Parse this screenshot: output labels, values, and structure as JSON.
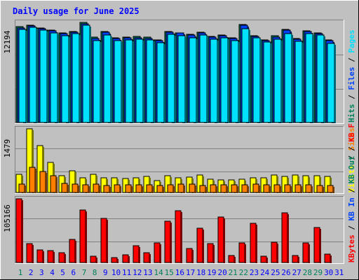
{
  "title": "Daily usage for June 2025",
  "colors": {
    "hits": "#00805c",
    "files": "#0040ff",
    "pages": "#00e0ff",
    "visits": "#ffff00",
    "sites": "#ff8000",
    "kbytes": "#ff0000",
    "title": "#0000ff",
    "weekend_label": "#00805c",
    "weekday_label": "#0000ff",
    "plot_bg": "#c0c0c0"
  },
  "chart_data": [
    {
      "type": "bar",
      "panel": "hits",
      "categories": [
        "1",
        "2",
        "3",
        "4",
        "5",
        "6",
        "7",
        "8",
        "9",
        "10",
        "11",
        "12",
        "13",
        "14",
        "15",
        "16",
        "17",
        "18",
        "19",
        "20",
        "21",
        "22",
        "23",
        "24",
        "25",
        "26",
        "27",
        "28",
        "29",
        "30",
        "31"
      ],
      "ymax_label": "12194",
      "ylim": [
        0,
        12194
      ],
      "legend": [
        "Hits",
        "Files",
        "Pages"
      ],
      "legend_colors": [
        "#00805c",
        "#0040ff",
        "#00e0ff"
      ],
      "series": [
        {
          "name": "Hits",
          "values": [
            11650,
            11860,
            11540,
            11290,
            10930,
            11080,
            12194,
            10380,
            11110,
            10340,
            10390,
            10460,
            10370,
            10020,
            11070,
            10950,
            10760,
            11000,
            10490,
            10660,
            10330,
            11980,
            10590,
            10070,
            10540,
            11330,
            10220,
            11140,
            10950,
            10040,
            0
          ]
        },
        {
          "name": "Files",
          "values": [
            11550,
            11760,
            11440,
            11140,
            10830,
            10980,
            12050,
            10240,
            10990,
            10230,
            10280,
            10360,
            10270,
            9980,
            10980,
            10890,
            10660,
            10880,
            10390,
            10560,
            10230,
            11880,
            10490,
            9970,
            10440,
            11230,
            10120,
            11050,
            10850,
            9940,
            0
          ]
        },
        {
          "name": "Pages",
          "values": [
            11300,
            11600,
            11220,
            10880,
            10560,
            10790,
            11870,
            10000,
            10680,
            9990,
            10050,
            10130,
            10040,
            9720,
            10770,
            10560,
            10300,
            10640,
            10130,
            10350,
            9960,
            11400,
            10290,
            9800,
            10170,
            10800,
            9920,
            10870,
            10650,
            9660,
            0
          ]
        }
      ]
    },
    {
      "type": "bar",
      "panel": "visits",
      "categories": [
        "1",
        "2",
        "3",
        "4",
        "5",
        "6",
        "7",
        "8",
        "9",
        "10",
        "11",
        "12",
        "13",
        "14",
        "15",
        "16",
        "17",
        "18",
        "19",
        "20",
        "21",
        "22",
        "23",
        "24",
        "25",
        "26",
        "27",
        "28",
        "29",
        "30",
        "31"
      ],
      "ymax_label": "1479",
      "ylim": [
        0,
        1479
      ],
      "legend": [
        "Visits",
        "Sites"
      ],
      "legend_colors": [
        "#ffff00",
        "#ff8000"
      ],
      "series": [
        {
          "name": "Visits",
          "values": [
            420,
            1479,
            1085,
            700,
            390,
            500,
            340,
            430,
            345,
            340,
            330,
            340,
            375,
            270,
            390,
            345,
            355,
            400,
            315,
            285,
            290,
            315,
            340,
            345,
            400,
            380,
            400,
            390,
            385,
            375,
            0
          ]
        },
        {
          "name": "Sites",
          "values": [
            200,
            580,
            480,
            390,
            210,
            190,
            175,
            190,
            160,
            175,
            175,
            175,
            175,
            165,
            185,
            195,
            195,
            165,
            175,
            175,
            175,
            185,
            195,
            175,
            185,
            175,
            185,
            175,
            165,
            155,
            0
          ]
        }
      ]
    },
    {
      "type": "bar",
      "panel": "kbytes",
      "categories": [
        "1",
        "2",
        "3",
        "4",
        "5",
        "6",
        "7",
        "8",
        "9",
        "10",
        "11",
        "12",
        "13",
        "14",
        "15",
        "16",
        "17",
        "18",
        "19",
        "20",
        "21",
        "22",
        "23",
        "24",
        "25",
        "26",
        "27",
        "28",
        "29",
        "30",
        "31"
      ],
      "ymax_label": "105166",
      "ylim": [
        0,
        105166
      ],
      "legend": [
        "KBytes",
        "KB In",
        "KB Out",
        "KB F"
      ],
      "legend_colors": [
        "#ff0000",
        "#0040ff",
        "#00805c",
        "#ff0000"
      ],
      "series": [
        {
          "name": "KBytes",
          "values": [
            105166,
            31100,
            20900,
            19500,
            16400,
            38500,
            86800,
            10400,
            72300,
            8600,
            12500,
            27800,
            16100,
            32100,
            67700,
            85100,
            23400,
            56800,
            30800,
            75500,
            11700,
            32100,
            64800,
            10400,
            33100,
            82300,
            11200,
            31800,
            57500,
            13500,
            0
          ]
        }
      ]
    }
  ],
  "day_labels": [
    {
      "text": "1",
      "weekend": true
    },
    {
      "text": "2",
      "weekend": false
    },
    {
      "text": "3",
      "weekend": false
    },
    {
      "text": "4",
      "weekend": false
    },
    {
      "text": "5",
      "weekend": false
    },
    {
      "text": "6",
      "weekend": false
    },
    {
      "text": "7",
      "weekend": true
    },
    {
      "text": "8",
      "weekend": true
    },
    {
      "text": "9",
      "weekend": false
    },
    {
      "text": "10",
      "weekend": false
    },
    {
      "text": "11",
      "weekend": false
    },
    {
      "text": "12",
      "weekend": false
    },
    {
      "text": "13",
      "weekend": false
    },
    {
      "text": "14",
      "weekend": true
    },
    {
      "text": "15",
      "weekend": true
    },
    {
      "text": "16",
      "weekend": false
    },
    {
      "text": "17",
      "weekend": false
    },
    {
      "text": "18",
      "weekend": false
    },
    {
      "text": "19",
      "weekend": false
    },
    {
      "text": "20",
      "weekend": false
    },
    {
      "text": "21",
      "weekend": true
    },
    {
      "text": "22",
      "weekend": true
    },
    {
      "text": "23",
      "weekend": false
    },
    {
      "text": "24",
      "weekend": false
    },
    {
      "text": "25",
      "weekend": false
    },
    {
      "text": "26",
      "weekend": false
    },
    {
      "text": "27",
      "weekend": false
    },
    {
      "text": "28",
      "weekend": true
    },
    {
      "text": "29",
      "weekend": true
    },
    {
      "text": "30",
      "weekend": false
    },
    {
      "text": "31",
      "weekend": false
    }
  ]
}
